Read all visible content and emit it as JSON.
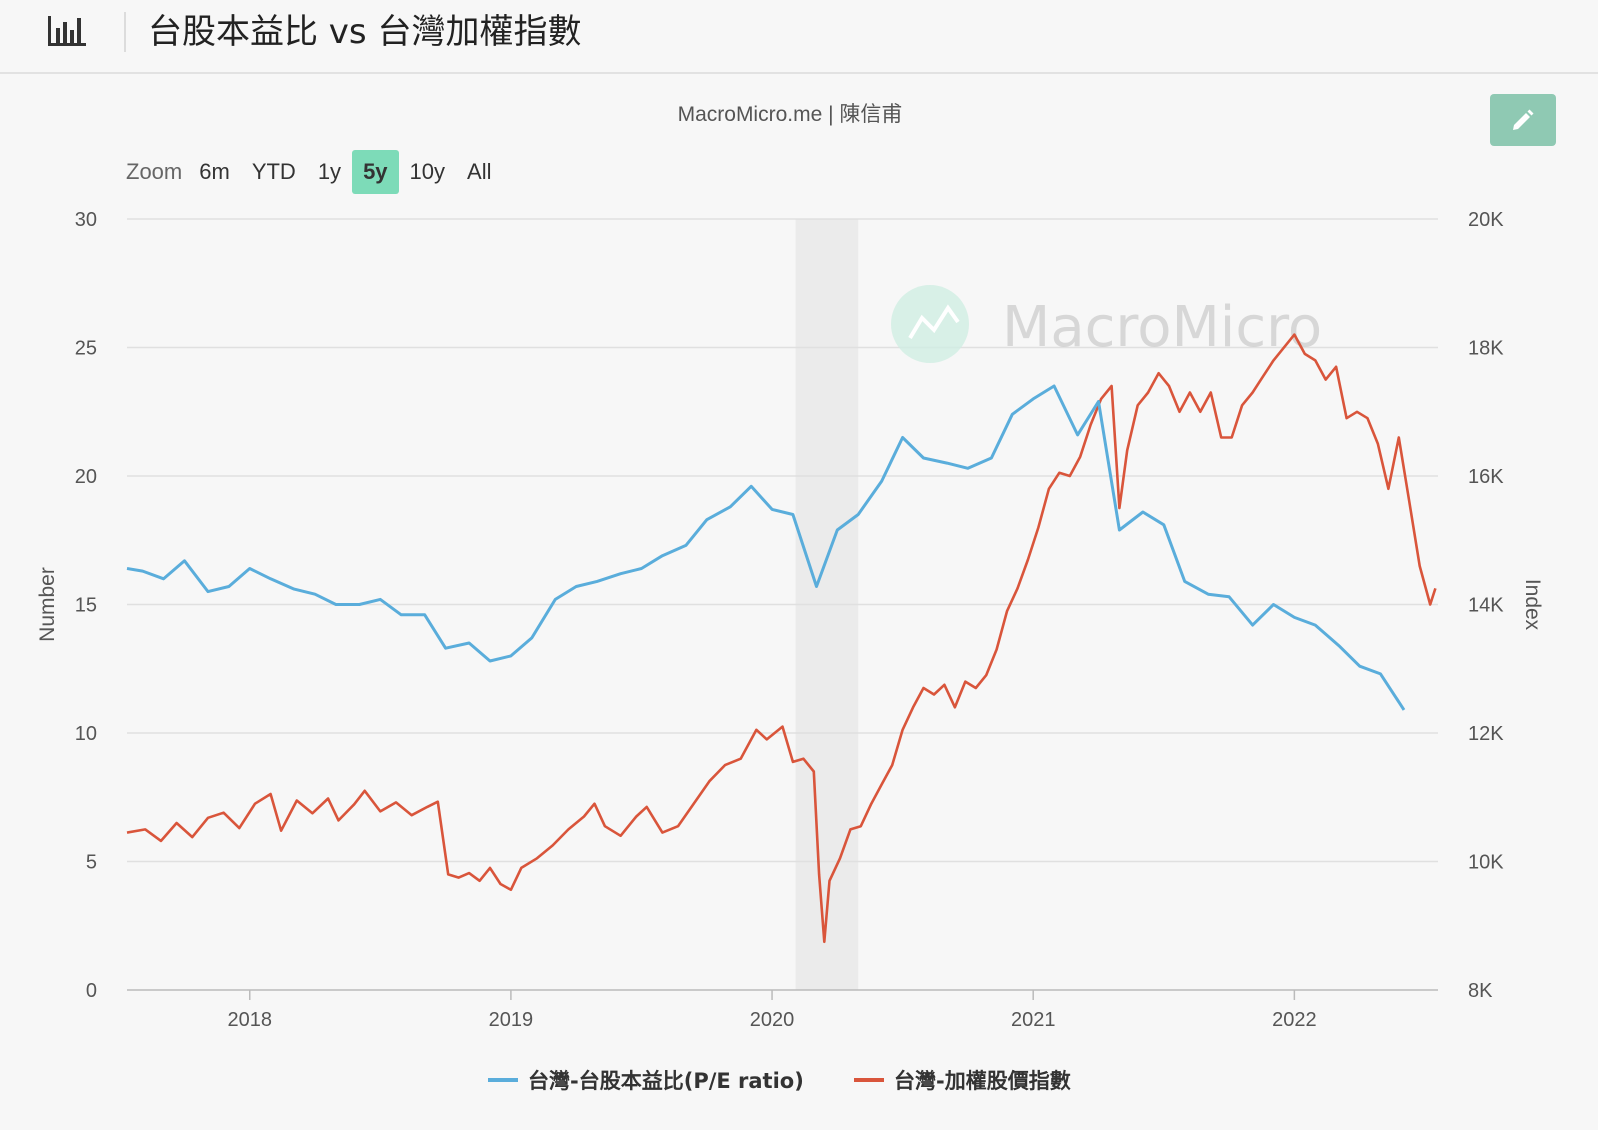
{
  "header": {
    "icon": "bar-chart-icon",
    "title": "台股本益比 vs 台灣加權指數"
  },
  "credit": "MacroMicro.me | 陳信甫",
  "edit_icon": "pencil-icon",
  "zoom": {
    "label": "Zoom",
    "options": [
      "6m",
      "YTD",
      "1y",
      "5y",
      "10y",
      "All"
    ],
    "active": "5y"
  },
  "watermark": "MacroMicro",
  "colors": {
    "pe": "#5aaddb",
    "index": "#d9553b",
    "recession_band": "#ebebeb",
    "accent": "#7ddbb8"
  },
  "chart_data": {
    "type": "line",
    "x_ticks": [
      "2018",
      "2019",
      "2020",
      "2021",
      "2022"
    ],
    "x_range": [
      2017.53,
      2022.55
    ],
    "left_axis": {
      "title": "Number",
      "ticks": [
        "0",
        "5",
        "10",
        "15",
        "20",
        "25",
        "30"
      ],
      "range": [
        0,
        30
      ]
    },
    "right_axis": {
      "title": "Index",
      "ticks": [
        "8K",
        "10K",
        "12K",
        "14K",
        "16K",
        "18K",
        "20K"
      ],
      "range": [
        8000,
        20000
      ]
    },
    "shaded_band": [
      2020.09,
      2020.33
    ],
    "grid": true,
    "legend_position": "bottom-center",
    "series": [
      {
        "name": "台灣-台股本益比(P/E ratio)",
        "axis": "left",
        "points": [
          [
            2017.53,
            16.4
          ],
          [
            2017.59,
            16.3
          ],
          [
            2017.67,
            16.0
          ],
          [
            2017.75,
            16.7
          ],
          [
            2017.84,
            15.5
          ],
          [
            2017.92,
            15.7
          ],
          [
            2018.0,
            16.4
          ],
          [
            2018.08,
            16.0
          ],
          [
            2018.17,
            15.6
          ],
          [
            2018.25,
            15.4
          ],
          [
            2018.33,
            15.0
          ],
          [
            2018.42,
            15.0
          ],
          [
            2018.5,
            15.2
          ],
          [
            2018.58,
            14.6
          ],
          [
            2018.67,
            14.6
          ],
          [
            2018.75,
            13.3
          ],
          [
            2018.84,
            13.5
          ],
          [
            2018.92,
            12.8
          ],
          [
            2019.0,
            13.0
          ],
          [
            2019.08,
            13.7
          ],
          [
            2019.17,
            15.2
          ],
          [
            2019.25,
            15.7
          ],
          [
            2019.33,
            15.9
          ],
          [
            2019.42,
            16.2
          ],
          [
            2019.5,
            16.4
          ],
          [
            2019.58,
            16.9
          ],
          [
            2019.67,
            17.3
          ],
          [
            2019.75,
            18.3
          ],
          [
            2019.84,
            18.8
          ],
          [
            2019.92,
            19.6
          ],
          [
            2020.0,
            18.7
          ],
          [
            2020.08,
            18.5
          ],
          [
            2020.17,
            15.7
          ],
          [
            2020.25,
            17.9
          ],
          [
            2020.33,
            18.5
          ],
          [
            2020.42,
            19.8
          ],
          [
            2020.5,
            21.5
          ],
          [
            2020.58,
            20.7
          ],
          [
            2020.67,
            20.5
          ],
          [
            2020.75,
            20.3
          ],
          [
            2020.84,
            20.7
          ],
          [
            2020.92,
            22.4
          ],
          [
            2021.0,
            23.0
          ],
          [
            2021.08,
            23.5
          ],
          [
            2021.17,
            21.6
          ],
          [
            2021.25,
            22.9
          ],
          [
            2021.33,
            17.9
          ],
          [
            2021.42,
            18.6
          ],
          [
            2021.5,
            18.1
          ],
          [
            2021.58,
            15.9
          ],
          [
            2021.67,
            15.4
          ],
          [
            2021.75,
            15.3
          ],
          [
            2021.84,
            14.2
          ],
          [
            2021.92,
            15.0
          ],
          [
            2022.0,
            14.5
          ],
          [
            2022.08,
            14.2
          ],
          [
            2022.17,
            13.4
          ],
          [
            2022.25,
            12.6
          ],
          [
            2022.33,
            12.3
          ],
          [
            2022.42,
            10.9
          ]
        ]
      },
      {
        "name": "台灣-加權股價指數",
        "axis": "right",
        "points": [
          [
            2017.53,
            10450
          ],
          [
            2017.6,
            10500
          ],
          [
            2017.66,
            10320
          ],
          [
            2017.72,
            10600
          ],
          [
            2017.78,
            10380
          ],
          [
            2017.84,
            10680
          ],
          [
            2017.9,
            10760
          ],
          [
            2017.96,
            10520
          ],
          [
            2018.02,
            10900
          ],
          [
            2018.08,
            11050
          ],
          [
            2018.12,
            10480
          ],
          [
            2018.18,
            10950
          ],
          [
            2018.24,
            10750
          ],
          [
            2018.3,
            10980
          ],
          [
            2018.34,
            10640
          ],
          [
            2018.4,
            10890
          ],
          [
            2018.44,
            11100
          ],
          [
            2018.5,
            10780
          ],
          [
            2018.56,
            10920
          ],
          [
            2018.62,
            10720
          ],
          [
            2018.68,
            10850
          ],
          [
            2018.72,
            10930
          ],
          [
            2018.76,
            9800
          ],
          [
            2018.8,
            9750
          ],
          [
            2018.84,
            9820
          ],
          [
            2018.88,
            9700
          ],
          [
            2018.92,
            9900
          ],
          [
            2018.96,
            9650
          ],
          [
            2019.0,
            9560
          ],
          [
            2019.04,
            9900
          ],
          [
            2019.1,
            10050
          ],
          [
            2019.16,
            10250
          ],
          [
            2019.22,
            10500
          ],
          [
            2019.28,
            10700
          ],
          [
            2019.32,
            10900
          ],
          [
            2019.36,
            10550
          ],
          [
            2019.42,
            10400
          ],
          [
            2019.48,
            10700
          ],
          [
            2019.52,
            10850
          ],
          [
            2019.58,
            10450
          ],
          [
            2019.64,
            10550
          ],
          [
            2019.7,
            10900
          ],
          [
            2019.76,
            11250
          ],
          [
            2019.82,
            11500
          ],
          [
            2019.88,
            11600
          ],
          [
            2019.94,
            12050
          ],
          [
            2019.98,
            11900
          ],
          [
            2020.04,
            12100
          ],
          [
            2020.08,
            11550
          ],
          [
            2020.12,
            11600
          ],
          [
            2020.16,
            11400
          ],
          [
            2020.18,
            9800
          ],
          [
            2020.2,
            8750
          ],
          [
            2020.22,
            9700
          ],
          [
            2020.26,
            10050
          ],
          [
            2020.3,
            10500
          ],
          [
            2020.34,
            10550
          ],
          [
            2020.38,
            10900
          ],
          [
            2020.42,
            11200
          ],
          [
            2020.46,
            11500
          ],
          [
            2020.5,
            12050
          ],
          [
            2020.54,
            12400
          ],
          [
            2020.58,
            12700
          ],
          [
            2020.62,
            12600
          ],
          [
            2020.66,
            12750
          ],
          [
            2020.7,
            12400
          ],
          [
            2020.74,
            12800
          ],
          [
            2020.78,
            12700
          ],
          [
            2020.82,
            12900
          ],
          [
            2020.86,
            13300
          ],
          [
            2020.9,
            13900
          ],
          [
            2020.94,
            14250
          ],
          [
            2020.98,
            14700
          ],
          [
            2021.02,
            15200
          ],
          [
            2021.06,
            15800
          ],
          [
            2021.1,
            16050
          ],
          [
            2021.14,
            16000
          ],
          [
            2021.18,
            16300
          ],
          [
            2021.22,
            16800
          ],
          [
            2021.26,
            17200
          ],
          [
            2021.3,
            17400
          ],
          [
            2021.33,
            15500
          ],
          [
            2021.36,
            16400
          ],
          [
            2021.4,
            17100
          ],
          [
            2021.44,
            17300
          ],
          [
            2021.48,
            17600
          ],
          [
            2021.52,
            17400
          ],
          [
            2021.56,
            17000
          ],
          [
            2021.6,
            17300
          ],
          [
            2021.64,
            17000
          ],
          [
            2021.68,
            17300
          ],
          [
            2021.72,
            16600
          ],
          [
            2021.76,
            16600
          ],
          [
            2021.8,
            17100
          ],
          [
            2021.84,
            17300
          ],
          [
            2021.88,
            17550
          ],
          [
            2021.92,
            17800
          ],
          [
            2022.0,
            18200
          ],
          [
            2022.04,
            17900
          ],
          [
            2022.08,
            17800
          ],
          [
            2022.12,
            17500
          ],
          [
            2022.16,
            17700
          ],
          [
            2022.2,
            16900
          ],
          [
            2022.24,
            17000
          ],
          [
            2022.28,
            16900
          ],
          [
            2022.32,
            16500
          ],
          [
            2022.36,
            15800
          ],
          [
            2022.38,
            16200
          ],
          [
            2022.4,
            16600
          ],
          [
            2022.44,
            15600
          ],
          [
            2022.48,
            14600
          ],
          [
            2022.52,
            14000
          ],
          [
            2022.54,
            14250
          ]
        ]
      }
    ]
  }
}
